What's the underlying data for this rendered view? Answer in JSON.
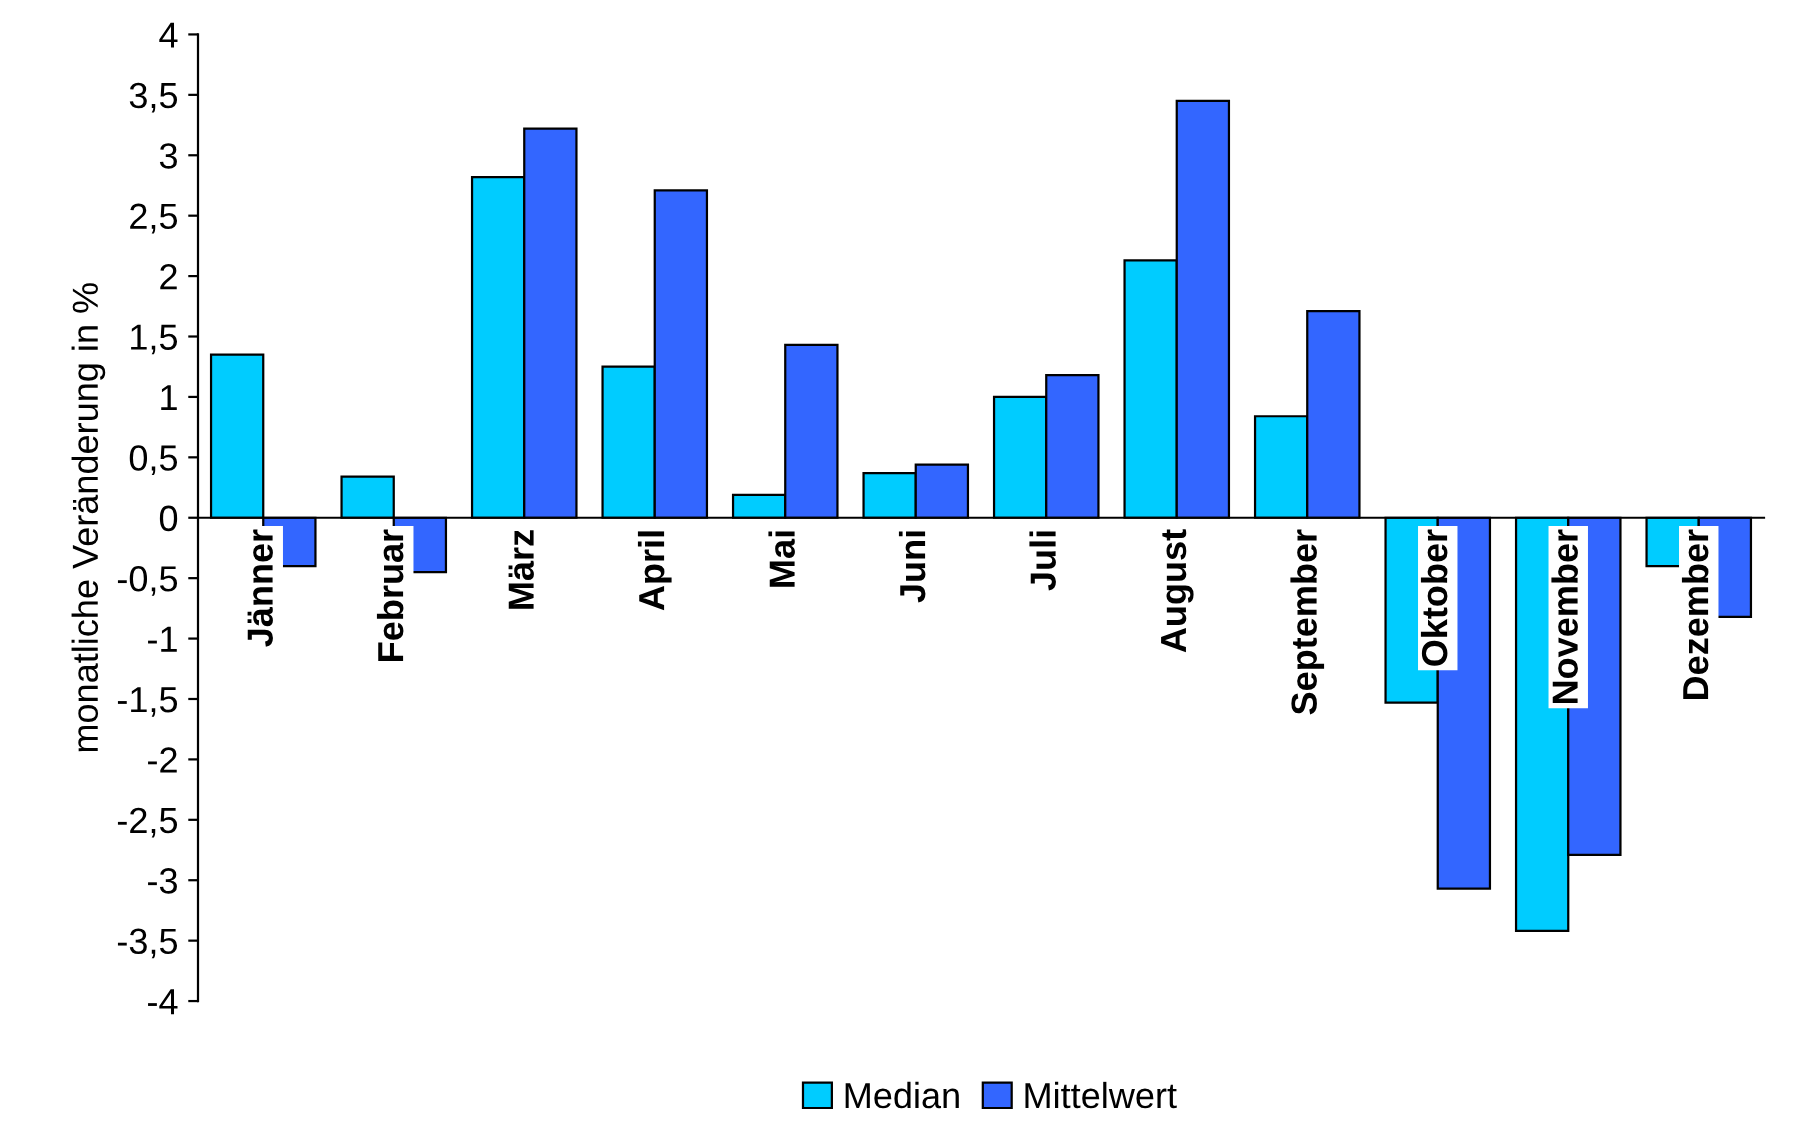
{
  "chart_data": {
    "type": "bar",
    "ylabel": "monatliche Veränderung in %",
    "categories": [
      "Jänner",
      "Februar",
      "März",
      "April",
      "Mai",
      "Juni",
      "Juli",
      "August",
      "September",
      "Oktober",
      "November",
      "Dezember"
    ],
    "series": [
      {
        "name": "Median",
        "color": "#00ccff",
        "values": [
          1.35,
          0.34,
          2.82,
          1.25,
          0.19,
          0.37,
          1.0,
          2.13,
          0.84,
          -1.53,
          -3.42,
          -0.4
        ]
      },
      {
        "name": "Mittelwert",
        "color": "#3366ff",
        "values": [
          -0.4,
          -0.45,
          3.22,
          2.71,
          1.43,
          0.44,
          1.18,
          3.45,
          1.71,
          -3.07,
          -2.79,
          -0.82
        ]
      }
    ],
    "ylim": [
      -4,
      4
    ],
    "yticks": [
      4,
      {
        "value": 3.5,
        "label": "3,5"
      },
      3,
      {
        "value": 2.5,
        "label": "2,5"
      },
      2,
      {
        "value": 1.5,
        "label": "1,5"
      },
      1,
      {
        "value": 0.5,
        "label": "0,5"
      },
      0,
      {
        "value": -0.5,
        "label": "-0,5"
      },
      -1,
      {
        "value": -1.5,
        "label": "-1,5"
      },
      -2,
      {
        "value": -2.5,
        "label": "-2,5"
      },
      -3,
      {
        "value": -3.5,
        "label": "-3,5"
      },
      -4
    ],
    "grid": false,
    "legend": "bottom"
  }
}
